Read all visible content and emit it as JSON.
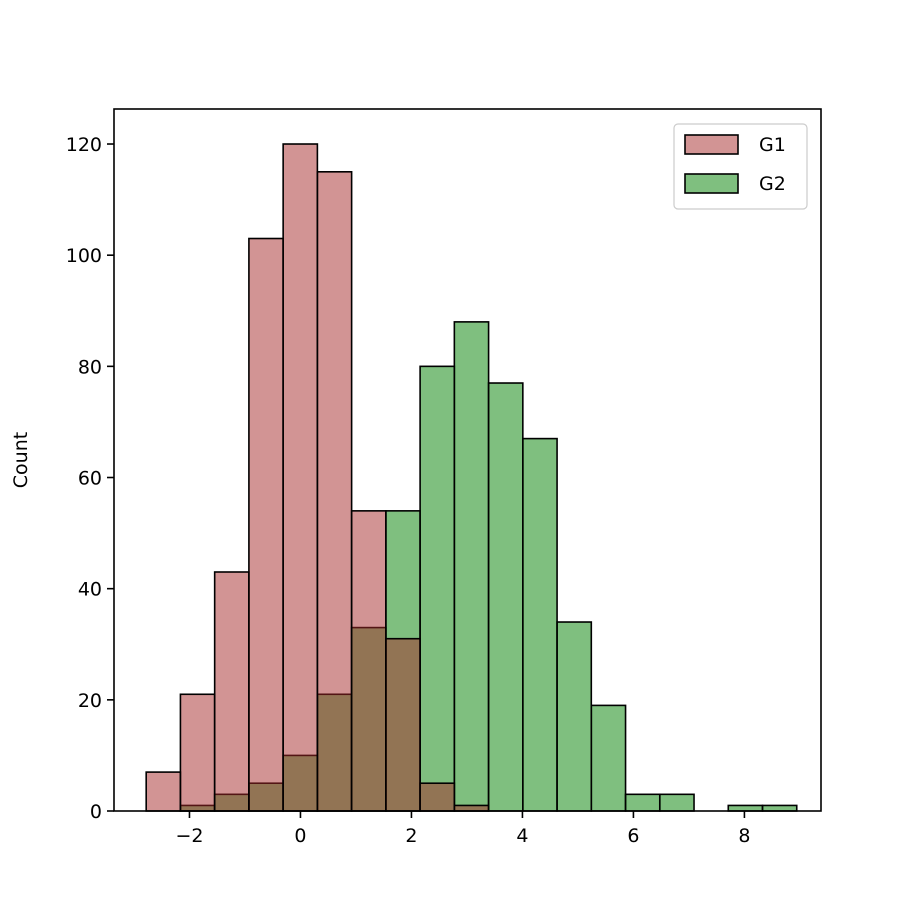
{
  "chart_data": {
    "type": "bar",
    "subtype": "overlapping histogram",
    "xlabel": "",
    "ylabel": "Count",
    "xlim": [
      -3.36,
      9.38
    ],
    "ylim": [
      0,
      126.3
    ],
    "bin_start": -2.78,
    "bin_width": 0.617,
    "xticks": [
      -2,
      0,
      2,
      4,
      6,
      8
    ],
    "xtick_labels": [
      "−2",
      "0",
      "2",
      "4",
      "6",
      "8"
    ],
    "yticks": [
      0,
      20,
      40,
      60,
      80,
      100,
      120
    ],
    "ytick_labels": [
      "0",
      "20",
      "40",
      "60",
      "80",
      "100",
      "120"
    ],
    "grid": false,
    "legend_position": "top-right",
    "series": [
      {
        "name": "G1",
        "color": "#a52a2a",
        "alpha": 0.5,
        "values": [
          7,
          21,
          43,
          103,
          120,
          115,
          54,
          31,
          5,
          1,
          0,
          0,
          0,
          0,
          0,
          0,
          0,
          0,
          0
        ]
      },
      {
        "name": "G2",
        "color": "#008000",
        "alpha": 0.5,
        "values": [
          0,
          1,
          3,
          5,
          10,
          21,
          33,
          54,
          80,
          88,
          77,
          67,
          34,
          19,
          3,
          3,
          0,
          1,
          1
        ]
      }
    ]
  }
}
